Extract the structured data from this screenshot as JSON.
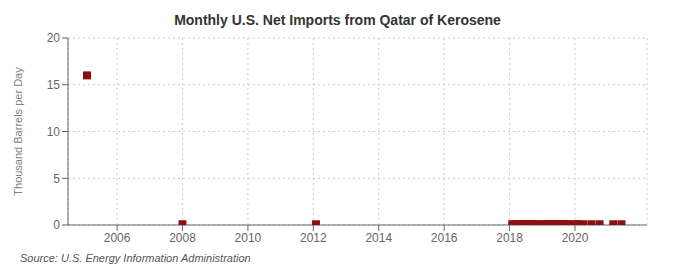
{
  "chart_data": {
    "type": "scatter",
    "title": "Monthly U.S. Net Imports from Qatar of Kerosene",
    "y_label": "Thousand Barrels per Day",
    "annotation": "Source: U.S. Energy Information Administration",
    "x": [
      2005.08,
      2008.0,
      2012.08,
      2018.08,
      2018.17,
      2018.25,
      2018.33,
      2018.42,
      2018.5,
      2018.58,
      2018.67,
      2018.75,
      2018.83,
      2019.0,
      2019.08,
      2019.17,
      2019.25,
      2019.33,
      2019.42,
      2019.5,
      2019.58,
      2019.67,
      2019.75,
      2019.83,
      2020.0,
      2020.08,
      2020.25,
      2020.5,
      2020.75,
      2021.17,
      2021.42
    ],
    "values": [
      16.0,
      0.08,
      0.08,
      0.08,
      0.08,
      0.08,
      0.08,
      0.08,
      0.08,
      0.08,
      0.08,
      0.08,
      0.08,
      0.08,
      0.08,
      0.08,
      0.08,
      0.08,
      0.08,
      0.08,
      0.08,
      0.08,
      0.08,
      0.08,
      0.08,
      0.08,
      0.08,
      0.08,
      0.08,
      0.08,
      0.08
    ],
    "color": "#8b1010",
    "marker": "square",
    "xlim": [
      2004.5,
      2022.2
    ],
    "xticks": [
      2006,
      2008,
      2010,
      2012,
      2014,
      2016,
      2018,
      2020
    ],
    "ylim": [
      0,
      20
    ],
    "yticks": [
      0,
      5,
      10,
      15,
      20
    ],
    "grid": true
  }
}
